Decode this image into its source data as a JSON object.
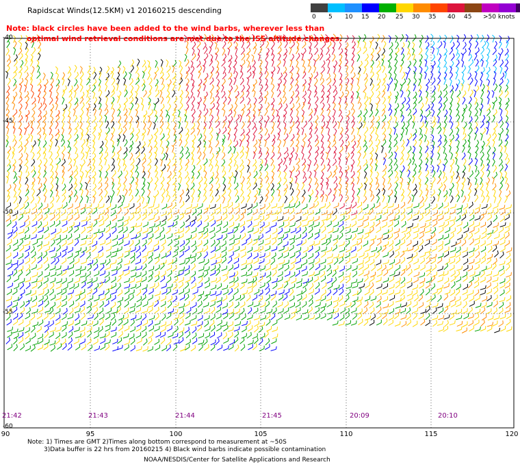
{
  "header": {
    "title": "Rapidscat Winds(12.5KM) v1 20160215 descending",
    "note_line1": "Note: black circles have been added to the wind barbs, wherever less than",
    "note_line2": "optimal wind retrieval conditions are met due to the ISS altitude changes."
  },
  "colorbar": {
    "colors": [
      "#404040",
      "#00bfff",
      "#1e90ff",
      "#0000ff",
      "#00b000",
      "#ffd700",
      "#ff8c00",
      "#ff4500",
      "#dc143c",
      "#8b4513",
      "#c000c0",
      "#9400d3",
      "#400060"
    ],
    "labels": [
      "0",
      "5",
      "10",
      "15",
      "20",
      "25",
      "30",
      "35",
      "40",
      "45",
      ">50 knots"
    ]
  },
  "map": {
    "lat_labels": [
      "-40",
      "-45",
      "-50",
      "-55",
      "-60"
    ],
    "lon_labels": [
      "90",
      "95",
      "100",
      "105",
      "110",
      "115",
      "120"
    ],
    "time_labels": [
      "21:42",
      "21:43",
      "21:44",
      "21:45",
      "20:09",
      "20:10"
    ]
  },
  "footer": {
    "note1": "Note: 1) Times are GMT 2)Times along bottom correspond to measurement at ~50S",
    "note2": "3)Data buffer is 22 hrs from 20160215 4) Black wind barbs indicate possible contamination",
    "credit": "NOAA/NESDIS/Center for Satellite Applications and Research"
  }
}
